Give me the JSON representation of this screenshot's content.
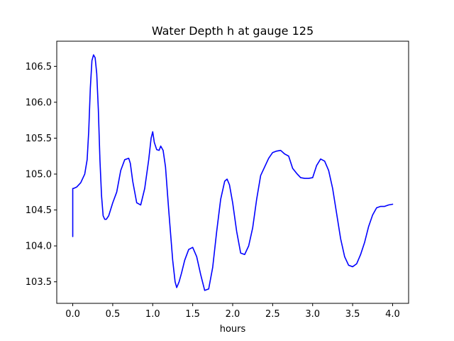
{
  "chart_data": {
    "type": "line",
    "title": "Water Depth h at gauge 125",
    "xlabel": "hours",
    "ylabel": "",
    "xlim": [
      -0.2,
      4.2
    ],
    "ylim": [
      103.2,
      106.85
    ],
    "xticks": [
      0.0,
      0.5,
      1.0,
      1.5,
      2.0,
      2.5,
      3.0,
      3.5,
      4.0
    ],
    "xtick_labels": [
      "0.0",
      "0.5",
      "1.0",
      "1.5",
      "2.0",
      "2.5",
      "3.0",
      "3.5",
      "4.0"
    ],
    "yticks": [
      103.5,
      104.0,
      104.5,
      105.0,
      105.5,
      106.0,
      106.5
    ],
    "ytick_labels": [
      "103.5",
      "104.0",
      "104.5",
      "105.0",
      "105.5",
      "106.0",
      "106.5"
    ],
    "grid": false,
    "series": [
      {
        "color": "#0000ff",
        "x": [
          0.0,
          0.0,
          0.005,
          0.01,
          0.05,
          0.1,
          0.15,
          0.18,
          0.2,
          0.22,
          0.24,
          0.26,
          0.28,
          0.3,
          0.32,
          0.34,
          0.36,
          0.38,
          0.4,
          0.42,
          0.45,
          0.5,
          0.55,
          0.6,
          0.65,
          0.7,
          0.72,
          0.75,
          0.8,
          0.85,
          0.9,
          0.95,
          0.98,
          1.0,
          1.02,
          1.05,
          1.08,
          1.1,
          1.13,
          1.16,
          1.2,
          1.25,
          1.28,
          1.3,
          1.33,
          1.36,
          1.4,
          1.45,
          1.5,
          1.55,
          1.6,
          1.65,
          1.7,
          1.75,
          1.8,
          1.85,
          1.9,
          1.93,
          1.96,
          2.0,
          2.05,
          2.1,
          2.15,
          2.2,
          2.25,
          2.3,
          2.35,
          2.4,
          2.45,
          2.5,
          2.55,
          2.6,
          2.65,
          2.7,
          2.75,
          2.8,
          2.85,
          2.9,
          2.95,
          3.0,
          3.05,
          3.1,
          3.15,
          3.2,
          3.25,
          3.3,
          3.35,
          3.4,
          3.45,
          3.5,
          3.55,
          3.6,
          3.65,
          3.7,
          3.75,
          3.8,
          3.85,
          3.9,
          3.95,
          4.0
        ],
        "y": [
          104.13,
          104.8,
          104.8,
          104.8,
          104.82,
          104.88,
          105.0,
          105.2,
          105.6,
          106.2,
          106.58,
          106.66,
          106.62,
          106.4,
          105.9,
          105.2,
          104.7,
          104.42,
          104.37,
          104.37,
          104.42,
          104.6,
          104.75,
          105.05,
          105.2,
          105.22,
          105.15,
          104.9,
          104.6,
          104.57,
          104.8,
          105.2,
          105.5,
          105.59,
          105.44,
          105.34,
          105.33,
          105.39,
          105.33,
          105.1,
          104.5,
          103.8,
          103.5,
          103.42,
          103.5,
          103.62,
          103.8,
          103.95,
          103.98,
          103.85,
          103.6,
          103.38,
          103.4,
          103.7,
          104.2,
          104.65,
          104.9,
          104.93,
          104.85,
          104.6,
          104.2,
          103.9,
          103.88,
          104.0,
          104.25,
          104.65,
          104.98,
          105.1,
          105.22,
          105.3,
          105.32,
          105.33,
          105.28,
          105.25,
          105.08,
          105.01,
          104.95,
          104.94,
          104.94,
          104.95,
          105.12,
          105.21,
          105.18,
          105.05,
          104.8,
          104.45,
          104.1,
          103.85,
          103.73,
          103.71,
          103.75,
          103.88,
          104.05,
          104.27,
          104.43,
          104.53,
          104.55,
          104.55,
          104.57,
          104.58
        ]
      }
    ]
  }
}
